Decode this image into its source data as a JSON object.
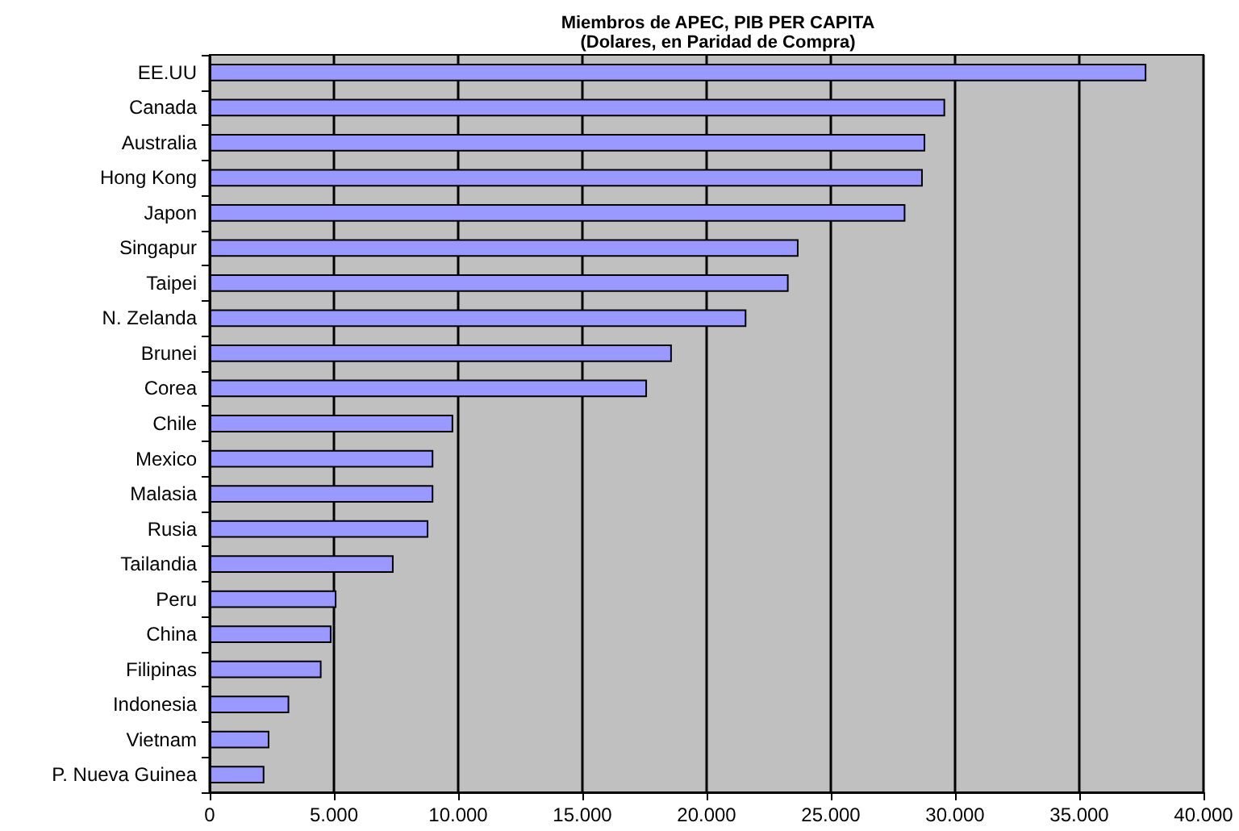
{
  "chart_data": {
    "type": "bar",
    "orientation": "horizontal",
    "title": "Miembros de APEC, PIB PER CAPITA",
    "subtitle": "(Dolares, en Paridad de Compra)",
    "categories": [
      "EE.UU",
      "Canada",
      "Australia",
      "Hong Kong",
      "Japon",
      "Singapur",
      "Taipei",
      "N. Zelanda",
      "Brunei",
      "Corea",
      "Chile",
      "Mexico",
      "Malasia",
      "Rusia",
      "Tailandia",
      "Peru",
      "China",
      "Filipinas",
      "Indonesia",
      "Vietnam",
      "P. Nueva Guinea"
    ],
    "values": [
      37700,
      29600,
      28800,
      28700,
      28000,
      23700,
      23300,
      21600,
      18600,
      17600,
      9800,
      9000,
      9000,
      8800,
      7400,
      5100,
      4900,
      4500,
      3200,
      2400,
      2200
    ],
    "color": "#9999ff",
    "xlim": [
      0,
      40000
    ],
    "xticks": [
      0,
      {
        "value": 5000,
        "label": "5.000"
      },
      {
        "value": 10000,
        "label": "10.000"
      },
      {
        "value": 15000,
        "label": "15.000"
      },
      {
        "value": 20000,
        "label": "20.000"
      },
      {
        "value": 25000,
        "label": "25.000"
      },
      {
        "value": 30000,
        "label": "30.000"
      },
      {
        "value": 35000,
        "label": "35.000"
      },
      {
        "value": 40000,
        "label": "40.000"
      }
    ],
    "grid": "x"
  }
}
